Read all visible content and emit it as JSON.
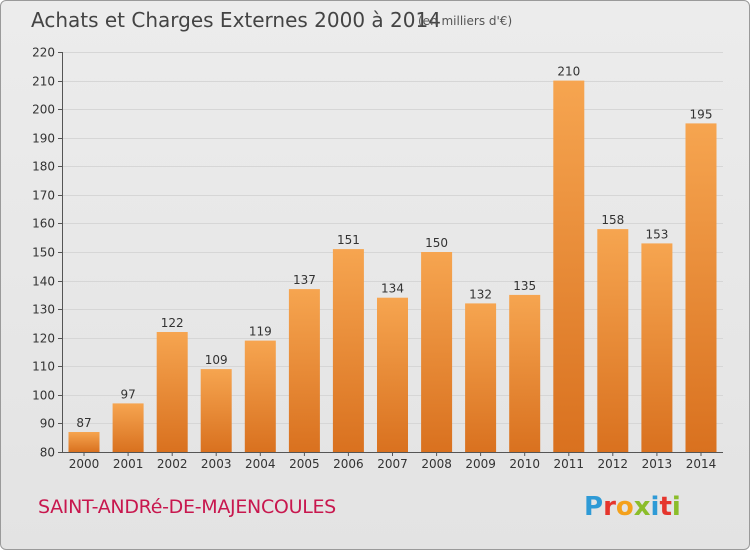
{
  "title": "Achats et Charges Externes 2000 à 2014",
  "subtitle": "(en milliers d'€)",
  "place": "SAINT-ANDRé-DE-MAJENCOULES",
  "logo": {
    "letters": [
      "P",
      "r",
      "o",
      "x",
      "i",
      "t",
      "i"
    ],
    "colors": [
      "#2e9ad6",
      "#e5352d",
      "#f4a11c",
      "#8bbd2a",
      "#2e9ad6",
      "#e5352d",
      "#8bbd2a"
    ]
  },
  "colors": {
    "bar_light": "#f6a550",
    "bar_dark": "#d9711f",
    "grid": "#d6d6d6",
    "axis": "#555555",
    "label": "#333333",
    "place": "#c8174e"
  },
  "chart_data": {
    "type": "bar",
    "title": "Achats et Charges Externes 2000 à 2014",
    "subtitle": "(en milliers d'€)",
    "categories": [
      "2000",
      "2001",
      "2002",
      "2003",
      "2004",
      "2005",
      "2006",
      "2007",
      "2008",
      "2009",
      "2010",
      "2011",
      "2012",
      "2013",
      "2014"
    ],
    "values": [
      87,
      97,
      122,
      109,
      119,
      137,
      151,
      134,
      150,
      132,
      135,
      210,
      158,
      153,
      195
    ],
    "ylim": [
      80,
      220
    ],
    "yticks": [
      80,
      90,
      100,
      110,
      120,
      130,
      140,
      150,
      160,
      170,
      180,
      190,
      200,
      210,
      220
    ],
    "xlabel": "",
    "ylabel": "",
    "grid": true,
    "data_labels": true
  }
}
